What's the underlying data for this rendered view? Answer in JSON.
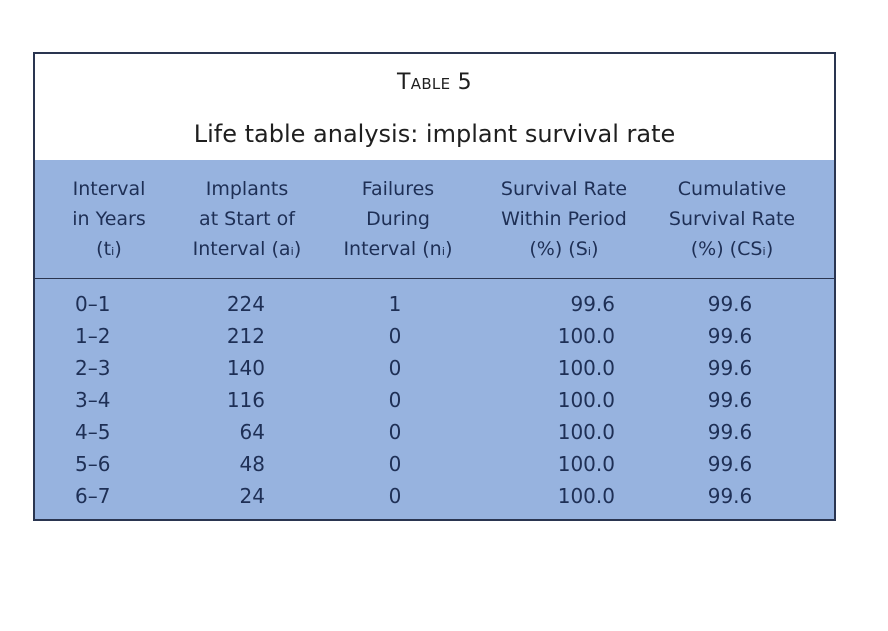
{
  "table": {
    "label": "Table 5",
    "title": "Life table analysis: implant survival rate",
    "headers": [
      [
        "Interval",
        "in Years",
        "(tᵢ)"
      ],
      [
        "Implants",
        "at Start of",
        "Interval (aᵢ)"
      ],
      [
        "Failures",
        "During",
        "Interval (nᵢ)"
      ],
      [
        "Survival Rate",
        "Within Period",
        "(%) (Sᵢ)"
      ],
      [
        "Cumulative",
        "Survival Rate",
        "(%) (CSᵢ)"
      ]
    ],
    "rows": [
      [
        "0–1",
        "224",
        "1",
        "99.6",
        "99.6"
      ],
      [
        "1–2",
        "212",
        "0",
        "100.0",
        "99.6"
      ],
      [
        "2–3",
        "140",
        "0",
        "100.0",
        "99.6"
      ],
      [
        "3–4",
        "116",
        "0",
        "100.0",
        "99.6"
      ],
      [
        "4–5",
        "64",
        "0",
        "100.0",
        "99.6"
      ],
      [
        "5–6",
        "48",
        "0",
        "100.0",
        "99.6"
      ],
      [
        "6–7",
        "24",
        "0",
        "100.0",
        "99.6"
      ]
    ]
  }
}
